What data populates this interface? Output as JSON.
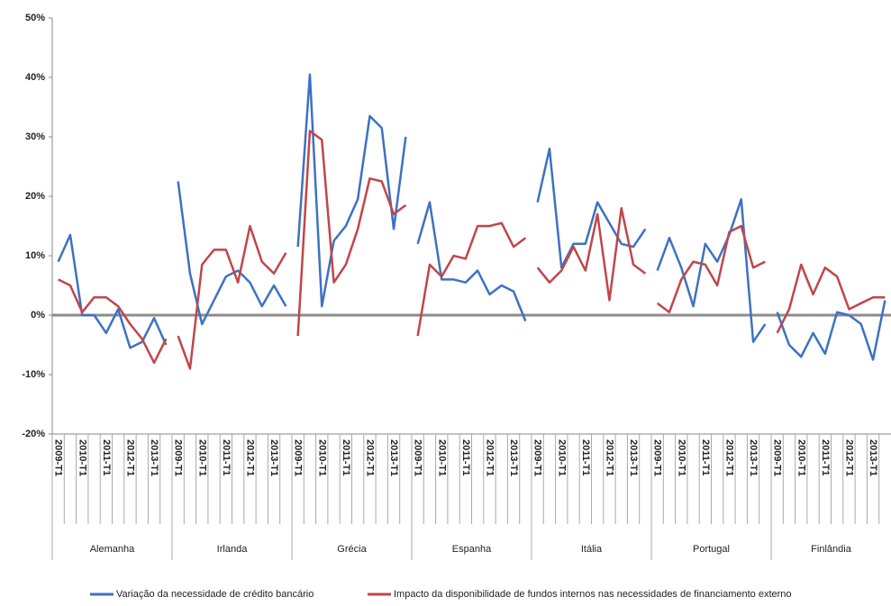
{
  "chart_data": {
    "type": "line",
    "groups": [
      "Alemanha",
      "Irlanda",
      "Grécia",
      "Espanha",
      "Itália",
      "Portugal",
      "Finlândia"
    ],
    "categories": [
      "2009-T1",
      null,
      "2010-T1",
      null,
      "2011-T1",
      null,
      "2012-T1",
      null,
      "2013-T1",
      null,
      "2009-T1",
      null,
      "2010-T1",
      null,
      "2011-T1",
      null,
      "2012-T1",
      null,
      "2013-T1",
      null,
      "2009-T1",
      null,
      "2010-T1",
      null,
      "2011-T1",
      null,
      "2012-T1",
      null,
      "2013-T1",
      null,
      "2009-T1",
      null,
      "2010-T1",
      null,
      "2011-T1",
      null,
      "2012-T1",
      null,
      "2013-T1",
      null,
      "2009-T1",
      null,
      "2010-T1",
      null,
      "2011-T1",
      null,
      "2012-T1",
      null,
      "2013-T1",
      null,
      "2009-T1",
      null,
      "2010-T1",
      null,
      "2011-T1",
      null,
      "2012-T1",
      null,
      "2013-T1",
      null,
      "2009-T1",
      null,
      "2010-T1",
      null,
      "2011-T1",
      null,
      "2012-T1",
      null,
      "2013-T1",
      null
    ],
    "series": [
      {
        "name": "Variação da necessidade de crédito bancário",
        "color": "#3d72c2",
        "values": [
          9,
          13.5,
          0,
          0,
          -3,
          1,
          -5.5,
          -4.5,
          -0.5,
          -5,
          22.5,
          7,
          -1.5,
          2.5,
          6.5,
          7.5,
          5.5,
          1.5,
          5,
          1.5,
          11.5,
          40.5,
          1.5,
          12.5,
          15,
          19.5,
          33.5,
          31.5,
          14.5,
          30,
          12,
          19,
          6,
          6,
          5.5,
          7.5,
          3.5,
          5,
          4,
          -1,
          19,
          28,
          8,
          12,
          12,
          19,
          15.5,
          12,
          11.5,
          14.5,
          7.5,
          13,
          8,
          1.5,
          12,
          9,
          13.5,
          19.5,
          -4.5,
          -1.5,
          0.5,
          -5,
          -7,
          -3,
          -6.5,
          0.5,
          0,
          -1.5,
          -7.5,
          2.5
        ]
      },
      {
        "name": "Impacto da disponibilidade de fundos internos nas necessidades de financiamento externo",
        "color": "#c0464a",
        "values": [
          6,
          5,
          0.5,
          3,
          3,
          1.5,
          -1.5,
          -4,
          -8,
          -4,
          -3.5,
          -9,
          8.5,
          11,
          11,
          5.5,
          15,
          9,
          7,
          10.5,
          -3.5,
          31,
          29.5,
          5.5,
          8.5,
          14.5,
          23,
          22.5,
          17,
          18.5,
          -3.5,
          8.5,
          6.5,
          10,
          9.5,
          15,
          15,
          15.5,
          11.5,
          13,
          8,
          5.5,
          7.5,
          11.5,
          7.5,
          17,
          2.5,
          18,
          8.5,
          7,
          2,
          0.5,
          6,
          9,
          8.5,
          5,
          14,
          15,
          8,
          9,
          -3,
          1,
          8.5,
          3.5,
          8,
          6.5,
          1,
          2,
          3,
          3
        ]
      }
    ],
    "ylim": [
      -20,
      50
    ],
    "yticks": [
      {
        "value": -20,
        "label": "-20%"
      },
      {
        "value": -10,
        "label": "-10%"
      },
      {
        "value": 0,
        "label": "0%"
      },
      {
        "value": 10,
        "label": "10%"
      },
      {
        "value": 20,
        "label": "20%"
      },
      {
        "value": 30,
        "label": "30%"
      },
      {
        "value": 40,
        "label": "40%"
      },
      {
        "value": 50,
        "label": "50%"
      }
    ]
  }
}
